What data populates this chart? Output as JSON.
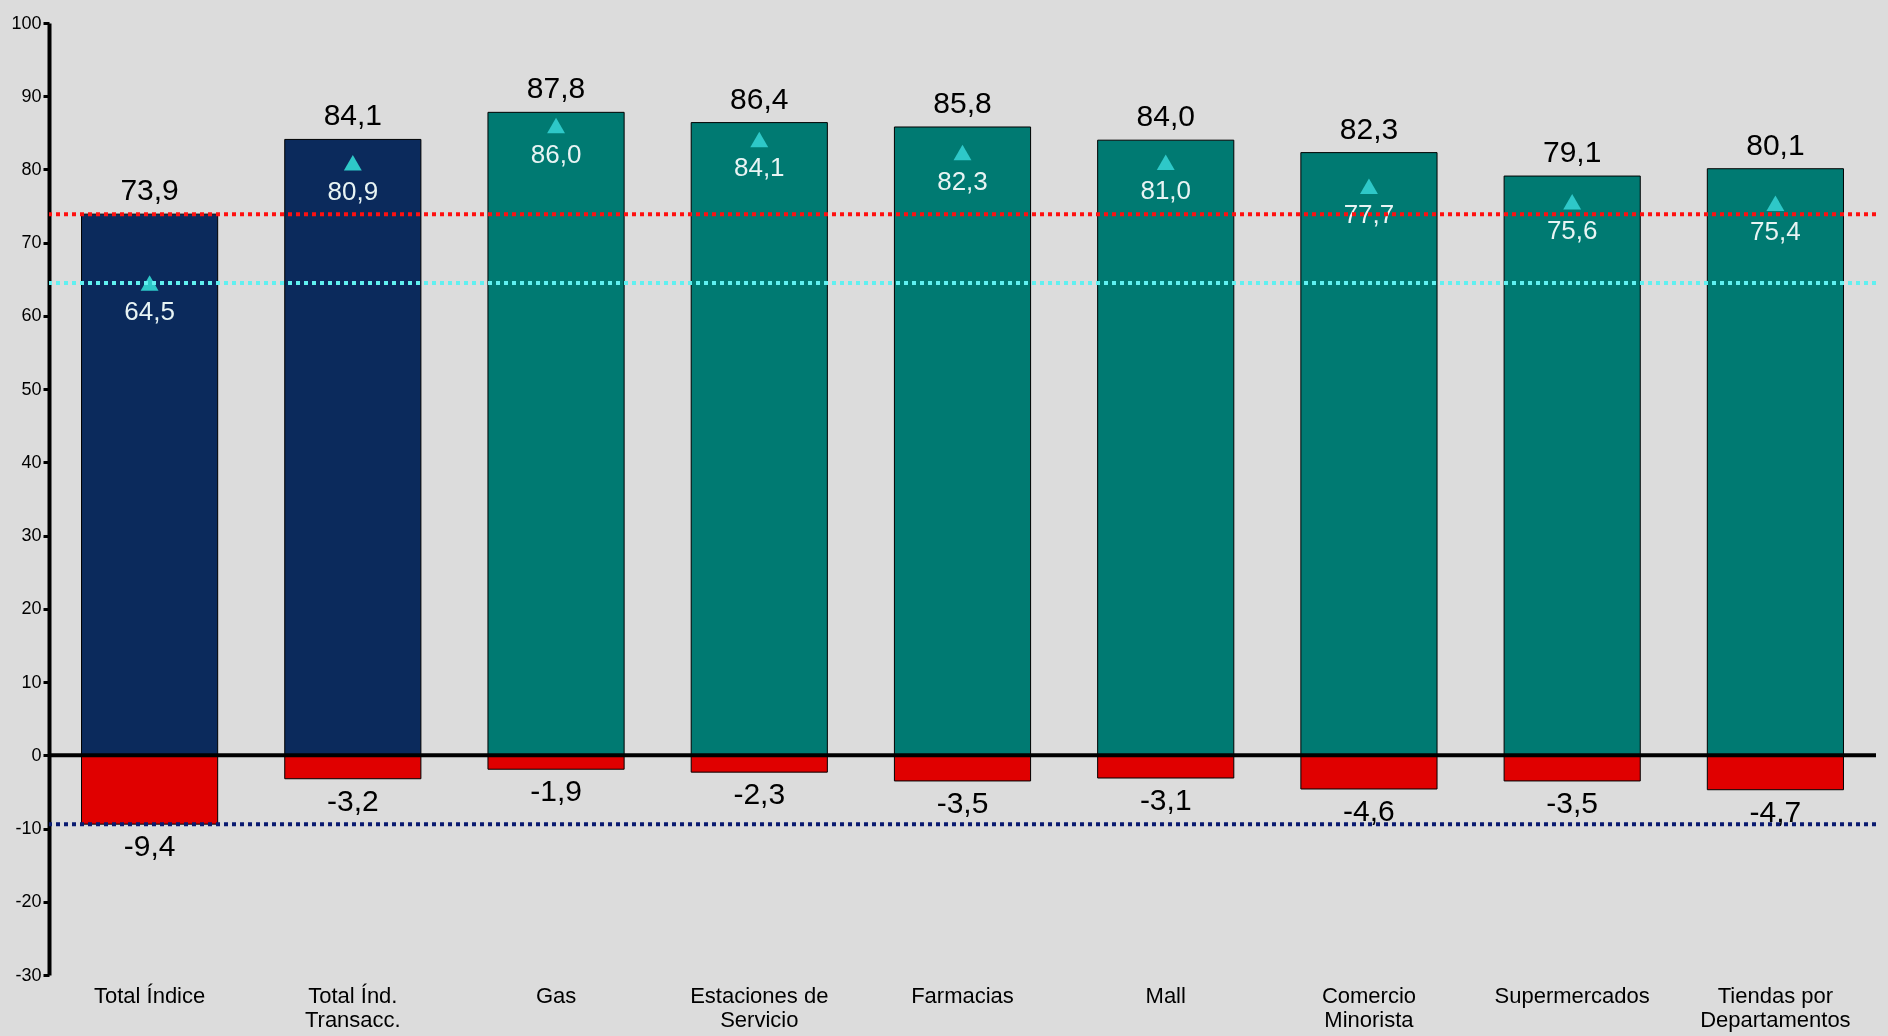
{
  "chart_data": {
    "type": "bar",
    "categories": [
      "Total Índice",
      "Total Índ.\nTransacc.",
      "Gas",
      "Estaciones de\nServicio",
      "Farmacias",
      "Mall",
      "Comercio\nMinorista",
      "Supermercados",
      "Tiendas por\nDepartamentos"
    ],
    "series": [
      {
        "colors": [
          "#0b2a5c",
          "#0b2a5c",
          "#007a72",
          "#007a72",
          "#007a72",
          "#007a72",
          "#007a72",
          "#007a72",
          "#007a72"
        ],
        "values": [
          73.9,
          84.1,
          87.8,
          86.4,
          85.8,
          84.0,
          82.3,
          79.1,
          80.1
        ],
        "value_labels": [
          "73,9",
          "84,1",
          "87,8",
          "86,4",
          "85,8",
          "84,0",
          "82,3",
          "79,1",
          "80,1"
        ]
      },
      {
        "color": "#e00000",
        "values": [
          -9.4,
          -3.2,
          -1.9,
          -2.3,
          -3.5,
          -3.1,
          -4.6,
          -3.5,
          -4.7
        ],
        "value_labels": [
          "-9,4",
          "-3,2",
          "-1,9",
          "-2,3",
          "-3,5",
          "-3,1",
          "-4,6",
          "-3,5",
          "-4,7"
        ]
      },
      {
        "type": "scatter",
        "color": "#2ec8c8",
        "values": [
          64.5,
          80.9,
          86.0,
          84.1,
          82.3,
          81.0,
          77.7,
          75.6,
          75.4
        ],
        "value_labels": [
          "64,5",
          "80,9",
          "86,0",
          "84,1",
          "82,3",
          "81,0",
          "77,7",
          "75,6",
          "75,4"
        ]
      }
    ],
    "marker": "triangle",
    "ylim": [
      -30,
      100
    ],
    "yticks": [
      -30,
      -20,
      -10,
      0,
      10,
      20,
      30,
      40,
      50,
      60,
      70,
      80,
      90,
      100
    ],
    "ref_lines": [
      {
        "axis": "y",
        "value": 73.9,
        "color": "#ff1010",
        "line_style": "dotted"
      },
      {
        "axis": "y",
        "value": 64.5,
        "color": "#60f0f0",
        "line_style": "dotted"
      },
      {
        "axis": "y",
        "value": -9.4,
        "color": "#0a1a70",
        "line_style": "dotted"
      }
    ],
    "stacked": true
  }
}
